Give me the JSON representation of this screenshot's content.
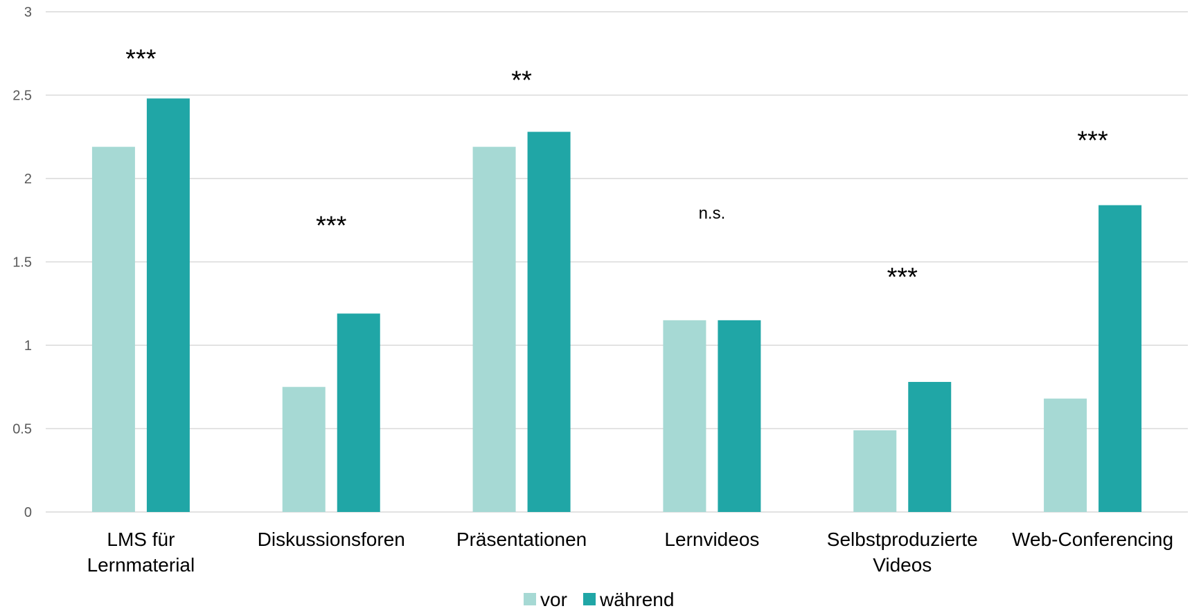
{
  "chart_data": {
    "type": "bar",
    "categories": [
      [
        "LMS für",
        "Lernmaterial"
      ],
      [
        "Diskussionsforen"
      ],
      [
        "Präsentationen"
      ],
      [
        "Lernvideos"
      ],
      [
        "Selbstproduzierte",
        "Videos"
      ],
      [
        "Web-Conferencing"
      ]
    ],
    "series": [
      {
        "name": "vor",
        "color": "#a6d9d4",
        "values": [
          2.19,
          0.75,
          2.19,
          1.15,
          0.49,
          0.68
        ]
      },
      {
        "name": "während",
        "color": "#20a6a6",
        "values": [
          2.48,
          1.19,
          2.28,
          1.15,
          0.78,
          1.84
        ]
      }
    ],
    "annotations": [
      "***",
      "***",
      "**",
      "n.s.",
      "***",
      "***"
    ],
    "annotation_values": [
      2.75,
      1.75,
      2.62,
      1.8,
      1.44,
      2.26
    ],
    "ylim": [
      0,
      3
    ],
    "yticks": [
      "0",
      "0.5",
      "1",
      "1.5",
      "2",
      "2.5",
      "3"
    ],
    "grid": true,
    "gridColor": "#d9d9d9",
    "legend_position": "bottom"
  }
}
